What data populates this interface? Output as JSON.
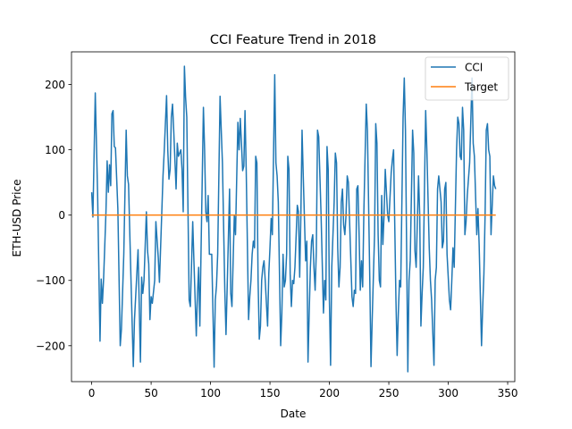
{
  "chart_data": {
    "type": "line",
    "title": "CCI Feature Trend in 2018",
    "xlabel": "Date",
    "ylabel": "ETH-USD Price",
    "xlim": [
      -17,
      356
    ],
    "ylim": [
      -255,
      250
    ],
    "x_ticks": [
      0,
      50,
      100,
      150,
      200,
      250,
      300,
      350
    ],
    "x_tick_labels": [
      "0",
      "50",
      "100",
      "150",
      "200",
      "250",
      "300",
      "350"
    ],
    "y_ticks": [
      -200,
      -100,
      0,
      100,
      200
    ],
    "y_tick_labels": [
      "−200",
      "−100",
      "0",
      "100",
      "200"
    ],
    "grid": false,
    "legend_placement": "top-right",
    "series": [
      {
        "name": "CCI",
        "color": "#1f77b4",
        "points": [
          [
            0,
            35
          ],
          [
            1,
            -3
          ],
          [
            3,
            187
          ],
          [
            5,
            30
          ],
          [
            7,
            -193
          ],
          [
            8,
            -98
          ],
          [
            9,
            -135
          ],
          [
            10,
            -98
          ],
          [
            12,
            5
          ],
          [
            13,
            83
          ],
          [
            14,
            35
          ],
          [
            15,
            77
          ],
          [
            16,
            45
          ],
          [
            17,
            155
          ],
          [
            18,
            160
          ],
          [
            19,
            105
          ],
          [
            20,
            103
          ],
          [
            22,
            10
          ],
          [
            24,
            -200
          ],
          [
            25,
            -175
          ],
          [
            27,
            -60
          ],
          [
            29,
            130
          ],
          [
            30,
            60
          ],
          [
            31,
            47
          ],
          [
            33,
            -95
          ],
          [
            35,
            -232
          ],
          [
            36,
            -160
          ],
          [
            39,
            -53
          ],
          [
            41,
            -225
          ],
          [
            42,
            -95
          ],
          [
            43,
            -120
          ],
          [
            44,
            -100
          ],
          [
            46,
            5
          ],
          [
            47,
            -55
          ],
          [
            48,
            -75
          ],
          [
            49,
            -160
          ],
          [
            50,
            -125
          ],
          [
            51,
            -135
          ],
          [
            53,
            -100
          ],
          [
            54,
            -10
          ],
          [
            56,
            -65
          ],
          [
            57,
            -103
          ],
          [
            60,
            60
          ],
          [
            61,
            97
          ],
          [
            63,
            183
          ],
          [
            64,
            100
          ],
          [
            65,
            55
          ],
          [
            66,
            70
          ],
          [
            67,
            150
          ],
          [
            68,
            170
          ],
          [
            69,
            130
          ],
          [
            70,
            85
          ],
          [
            71,
            40
          ],
          [
            72,
            110
          ],
          [
            73,
            90
          ],
          [
            75,
            100
          ],
          [
            76,
            70
          ],
          [
            77,
            5
          ],
          [
            78,
            228
          ],
          [
            79,
            180
          ],
          [
            80,
            150
          ],
          [
            82,
            -130
          ],
          [
            83,
            -140
          ],
          [
            85,
            -10
          ],
          [
            86,
            -70
          ],
          [
            88,
            -185
          ],
          [
            89,
            -120
          ],
          [
            90,
            -80
          ],
          [
            91,
            -170
          ],
          [
            92,
            -55
          ],
          [
            94,
            165
          ],
          [
            95,
            100
          ],
          [
            96,
            5
          ],
          [
            97,
            -10
          ],
          [
            98,
            30
          ],
          [
            99,
            -60
          ],
          [
            101,
            -60
          ],
          [
            103,
            -233
          ],
          [
            104,
            -130
          ],
          [
            105,
            -108
          ],
          [
            106,
            -60
          ],
          [
            108,
            182
          ],
          [
            109,
            130
          ],
          [
            110,
            80
          ],
          [
            112,
            -115
          ],
          [
            113,
            -183
          ],
          [
            114,
            -110
          ],
          [
            116,
            40
          ],
          [
            117,
            -120
          ],
          [
            118,
            -140
          ],
          [
            120,
            0
          ],
          [
            121,
            -30
          ],
          [
            123,
            142
          ],
          [
            124,
            100
          ],
          [
            125,
            148
          ],
          [
            126,
            110
          ],
          [
            127,
            68
          ],
          [
            128,
            75
          ],
          [
            129,
            160
          ],
          [
            130,
            70
          ],
          [
            132,
            -160
          ],
          [
            133,
            -125
          ],
          [
            134,
            -100
          ],
          [
            135,
            -60
          ],
          [
            136,
            -40
          ],
          [
            137,
            -50
          ],
          [
            138,
            90
          ],
          [
            139,
            80
          ],
          [
            140,
            -100
          ],
          [
            141,
            -190
          ],
          [
            142,
            -170
          ],
          [
            143,
            -100
          ],
          [
            144,
            -80
          ],
          [
            145,
            -70
          ],
          [
            146,
            -100
          ],
          [
            148,
            -170
          ],
          [
            149,
            -90
          ],
          [
            150,
            -50
          ],
          [
            151,
            -5
          ],
          [
            152,
            -30
          ],
          [
            154,
            215
          ],
          [
            155,
            80
          ],
          [
            156,
            60
          ],
          [
            157,
            20
          ],
          [
            159,
            -200
          ],
          [
            160,
            -150
          ],
          [
            161,
            -60
          ],
          [
            162,
            -110
          ],
          [
            163,
            -100
          ],
          [
            164,
            -60
          ],
          [
            165,
            90
          ],
          [
            166,
            70
          ],
          [
            167,
            -90
          ],
          [
            168,
            -140
          ],
          [
            169,
            -100
          ],
          [
            170,
            -105
          ],
          [
            171,
            -80
          ],
          [
            173,
            15
          ],
          [
            174,
            5
          ],
          [
            175,
            -95
          ],
          [
            176,
            0
          ],
          [
            177,
            130
          ],
          [
            178,
            60
          ],
          [
            180,
            -70
          ],
          [
            181,
            -40
          ],
          [
            182,
            -225
          ],
          [
            183,
            -150
          ],
          [
            184,
            -80
          ],
          [
            185,
            -40
          ],
          [
            186,
            -30
          ],
          [
            187,
            -80
          ],
          [
            188,
            -115
          ],
          [
            189,
            -55
          ],
          [
            190,
            130
          ],
          [
            191,
            120
          ],
          [
            192,
            60
          ],
          [
            193,
            0
          ],
          [
            195,
            -150
          ],
          [
            196,
            -100
          ],
          [
            197,
            -130
          ],
          [
            198,
            105
          ],
          [
            199,
            70
          ],
          [
            200,
            -130
          ],
          [
            201,
            -230
          ],
          [
            202,
            -80
          ],
          [
            204,
            20
          ],
          [
            205,
            95
          ],
          [
            206,
            80
          ],
          [
            207,
            -50
          ],
          [
            208,
            -110
          ],
          [
            209,
            -80
          ],
          [
            210,
            20
          ],
          [
            211,
            40
          ],
          [
            212,
            -15
          ],
          [
            213,
            -30
          ],
          [
            214,
            0
          ],
          [
            215,
            60
          ],
          [
            216,
            50
          ],
          [
            217,
            -10
          ],
          [
            219,
            -125
          ],
          [
            220,
            -140
          ],
          [
            221,
            -115
          ],
          [
            222,
            -120
          ],
          [
            223,
            40
          ],
          [
            224,
            45
          ],
          [
            225,
            -30
          ],
          [
            226,
            -115
          ],
          [
            227,
            -70
          ],
          [
            228,
            -110
          ],
          [
            229,
            5
          ],
          [
            231,
            170
          ],
          [
            232,
            130
          ],
          [
            234,
            -100
          ],
          [
            235,
            -232
          ],
          [
            236,
            -160
          ],
          [
            238,
            -30
          ],
          [
            239,
            140
          ],
          [
            240,
            110
          ],
          [
            241,
            -30
          ],
          [
            242,
            -100
          ],
          [
            243,
            -110
          ],
          [
            244,
            30
          ],
          [
            245,
            -45
          ],
          [
            246,
            0
          ],
          [
            247,
            70
          ],
          [
            249,
            0
          ],
          [
            250,
            -10
          ],
          [
            252,
            65
          ],
          [
            253,
            85
          ],
          [
            254,
            100
          ],
          [
            256,
            -130
          ],
          [
            257,
            -215
          ],
          [
            258,
            -150
          ],
          [
            259,
            -100
          ],
          [
            260,
            -110
          ],
          [
            262,
            150
          ],
          [
            263,
            210
          ],
          [
            264,
            130
          ],
          [
            266,
            -240
          ],
          [
            267,
            -100
          ],
          [
            268,
            -70
          ],
          [
            270,
            130
          ],
          [
            271,
            95
          ],
          [
            272,
            -55
          ],
          [
            273,
            -80
          ],
          [
            275,
            60
          ],
          [
            276,
            0
          ],
          [
            277,
            -170
          ],
          [
            278,
            -120
          ],
          [
            279,
            -80
          ],
          [
            281,
            160
          ],
          [
            282,
            100
          ],
          [
            284,
            -50
          ],
          [
            285,
            -100
          ],
          [
            286,
            -130
          ],
          [
            288,
            -230
          ],
          [
            289,
            -100
          ],
          [
            290,
            -80
          ],
          [
            291,
            40
          ],
          [
            292,
            60
          ],
          [
            294,
            20
          ],
          [
            295,
            -50
          ],
          [
            296,
            -40
          ],
          [
            297,
            40
          ],
          [
            298,
            50
          ],
          [
            299,
            -60
          ],
          [
            301,
            -130
          ],
          [
            302,
            -145
          ],
          [
            303,
            -100
          ],
          [
            304,
            -50
          ],
          [
            305,
            -80
          ],
          [
            307,
            100
          ],
          [
            308,
            150
          ],
          [
            309,
            140
          ],
          [
            310,
            90
          ],
          [
            311,
            85
          ],
          [
            312,
            165
          ],
          [
            313,
            130
          ],
          [
            314,
            -30
          ],
          [
            315,
            -10
          ],
          [
            316,
            30
          ],
          [
            318,
            80
          ],
          [
            320,
            210
          ],
          [
            321,
            110
          ],
          [
            322,
            90
          ],
          [
            324,
            -30
          ],
          [
            325,
            10
          ],
          [
            326,
            -45
          ],
          [
            328,
            -200
          ],
          [
            329,
            -140
          ],
          [
            330,
            -90
          ],
          [
            331,
            0
          ],
          [
            332,
            130
          ],
          [
            333,
            140
          ],
          [
            334,
            100
          ],
          [
            335,
            90
          ],
          [
            336,
            -30
          ],
          [
            338,
            60
          ],
          [
            339,
            45
          ],
          [
            340,
            40
          ]
        ]
      },
      {
        "name": "Target",
        "color": "#ff7f0e",
        "points": [
          [
            0,
            0
          ],
          [
            340,
            0
          ]
        ]
      }
    ]
  }
}
